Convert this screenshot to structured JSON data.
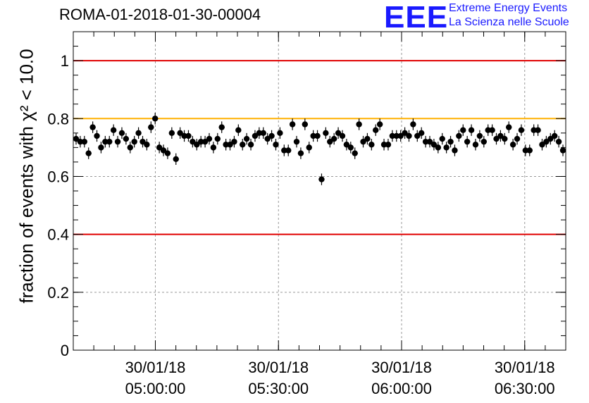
{
  "title": "ROMA-01-2018-01-30-00004",
  "logo": {
    "mark": "EEE",
    "line1": "Extreme Energy Events",
    "line2": "La Scienza nelle Scuole"
  },
  "colors": {
    "points": "#000000",
    "limit_red": "#e00000",
    "limit_orange": "#ffb000",
    "grid": "#999999",
    "logo": "#1a1aff"
  },
  "chart_data": {
    "type": "scatter",
    "title": "ROMA-01-2018-01-30-00004",
    "xlabel": "",
    "ylabel": "fraction of events with χ² < 10.0",
    "ylim": [
      0,
      1.1
    ],
    "xlim": [
      "04:40",
      "06:40"
    ],
    "xticks": [
      {
        "date": "30/01/18",
        "time": "05:00:00"
      },
      {
        "date": "30/01/18",
        "time": "05:30:00"
      },
      {
        "date": "30/01/18",
        "time": "06:00:00"
      },
      {
        "date": "30/01/18",
        "time": "06:30:00"
      }
    ],
    "yticks": [
      "0",
      "0.2",
      "0.4",
      "0.6",
      "0.8",
      "1"
    ],
    "grid": true,
    "reference_lines": [
      {
        "y": 1.0,
        "color": "red"
      },
      {
        "y": 0.8,
        "color": "orange"
      },
      {
        "y": 0.4,
        "color": "red"
      }
    ],
    "series": [
      {
        "values": [
          0.73,
          0.72,
          0.72,
          0.68,
          0.77,
          0.74,
          0.7,
          0.72,
          0.72,
          0.76,
          0.72,
          0.75,
          0.73,
          0.7,
          0.72,
          0.75,
          0.72,
          0.71,
          0.77,
          0.8,
          0.7,
          0.69,
          0.68,
          0.75,
          0.66,
          0.75,
          0.74,
          0.74,
          0.72,
          0.71,
          0.72,
          0.72,
          0.73,
          0.7,
          0.73,
          0.77,
          0.71,
          0.71,
          0.72,
          0.76,
          0.71,
          0.73,
          0.71,
          0.74,
          0.75,
          0.75,
          0.73,
          0.74,
          0.71,
          0.75,
          0.69,
          0.69,
          0.78,
          0.72,
          0.68,
          0.78,
          0.7,
          0.74,
          0.74,
          0.59,
          0.75,
          0.72,
          0.73,
          0.75,
          0.74,
          0.71,
          0.7,
          0.68,
          0.78,
          0.72,
          0.73,
          0.71,
          0.76,
          0.78,
          0.71,
          0.71,
          0.74,
          0.74,
          0.74,
          0.75,
          0.74,
          0.78,
          0.74,
          0.75,
          0.72,
          0.72,
          0.71,
          0.7,
          0.73,
          0.7,
          0.72,
          0.69,
          0.74,
          0.76,
          0.72,
          0.76,
          0.71,
          0.74,
          0.72,
          0.76,
          0.76,
          0.73,
          0.74,
          0.73,
          0.77,
          0.71,
          0.73,
          0.76,
          0.69,
          0.69,
          0.76,
          0.76,
          0.71,
          0.72,
          0.73,
          0.74,
          0.72,
          0.69
        ],
        "error": 0.02
      }
    ]
  }
}
